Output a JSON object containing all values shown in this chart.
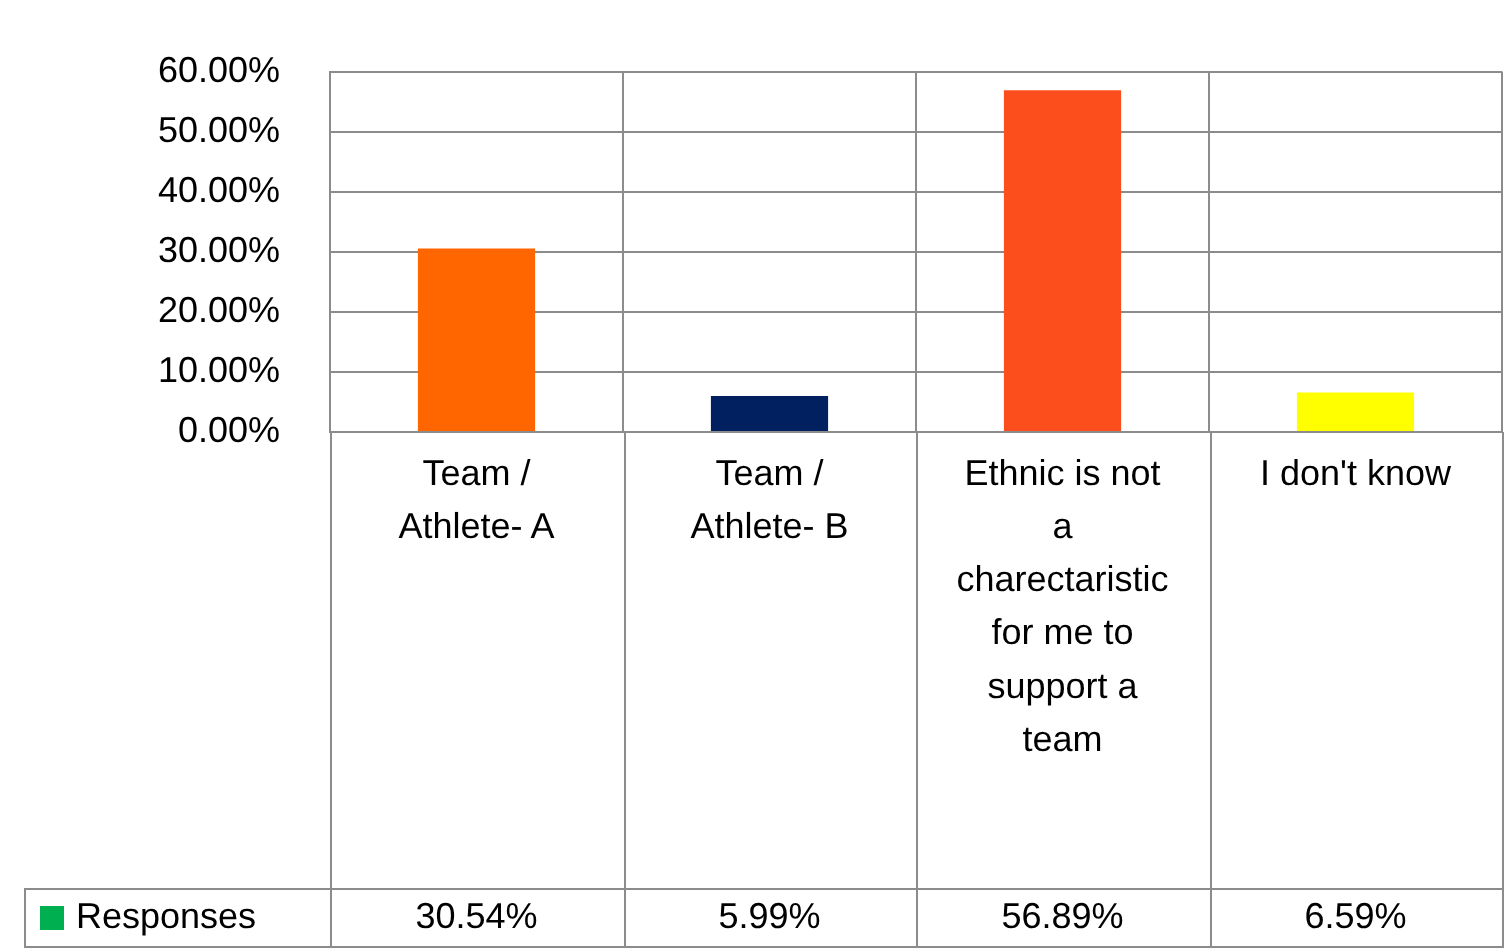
{
  "chart_data": {
    "type": "bar",
    "categories": [
      "Team / Athlete- A",
      "Team / Athlete- B",
      "Ethnic is not a charectaristic for me to support a team",
      "I don't know"
    ],
    "series": [
      {
        "name": "Responses",
        "color": "#00b050",
        "colors": [
          "#ff6600",
          "#002060",
          "#fc4e1c",
          "#ffff00"
        ],
        "values": [
          30.54,
          5.99,
          56.89,
          6.59
        ],
        "value_labels": [
          "30.54%",
          "5.99%",
          "56.89%",
          "6.59%"
        ]
      }
    ],
    "ylim": [
      0,
      60
    ],
    "yticks": [
      {
        "value": 0,
        "label": "0.00%"
      },
      {
        "value": 10,
        "label": "10.00%"
      },
      {
        "value": 20,
        "label": "20.00%"
      },
      {
        "value": 30,
        "label": "30.00%"
      },
      {
        "value": 40,
        "label": "40.00%"
      },
      {
        "value": 50,
        "label": "50.00%"
      },
      {
        "value": 60,
        "label": "60.00%"
      }
    ],
    "grid": true,
    "legend": "bottom"
  }
}
